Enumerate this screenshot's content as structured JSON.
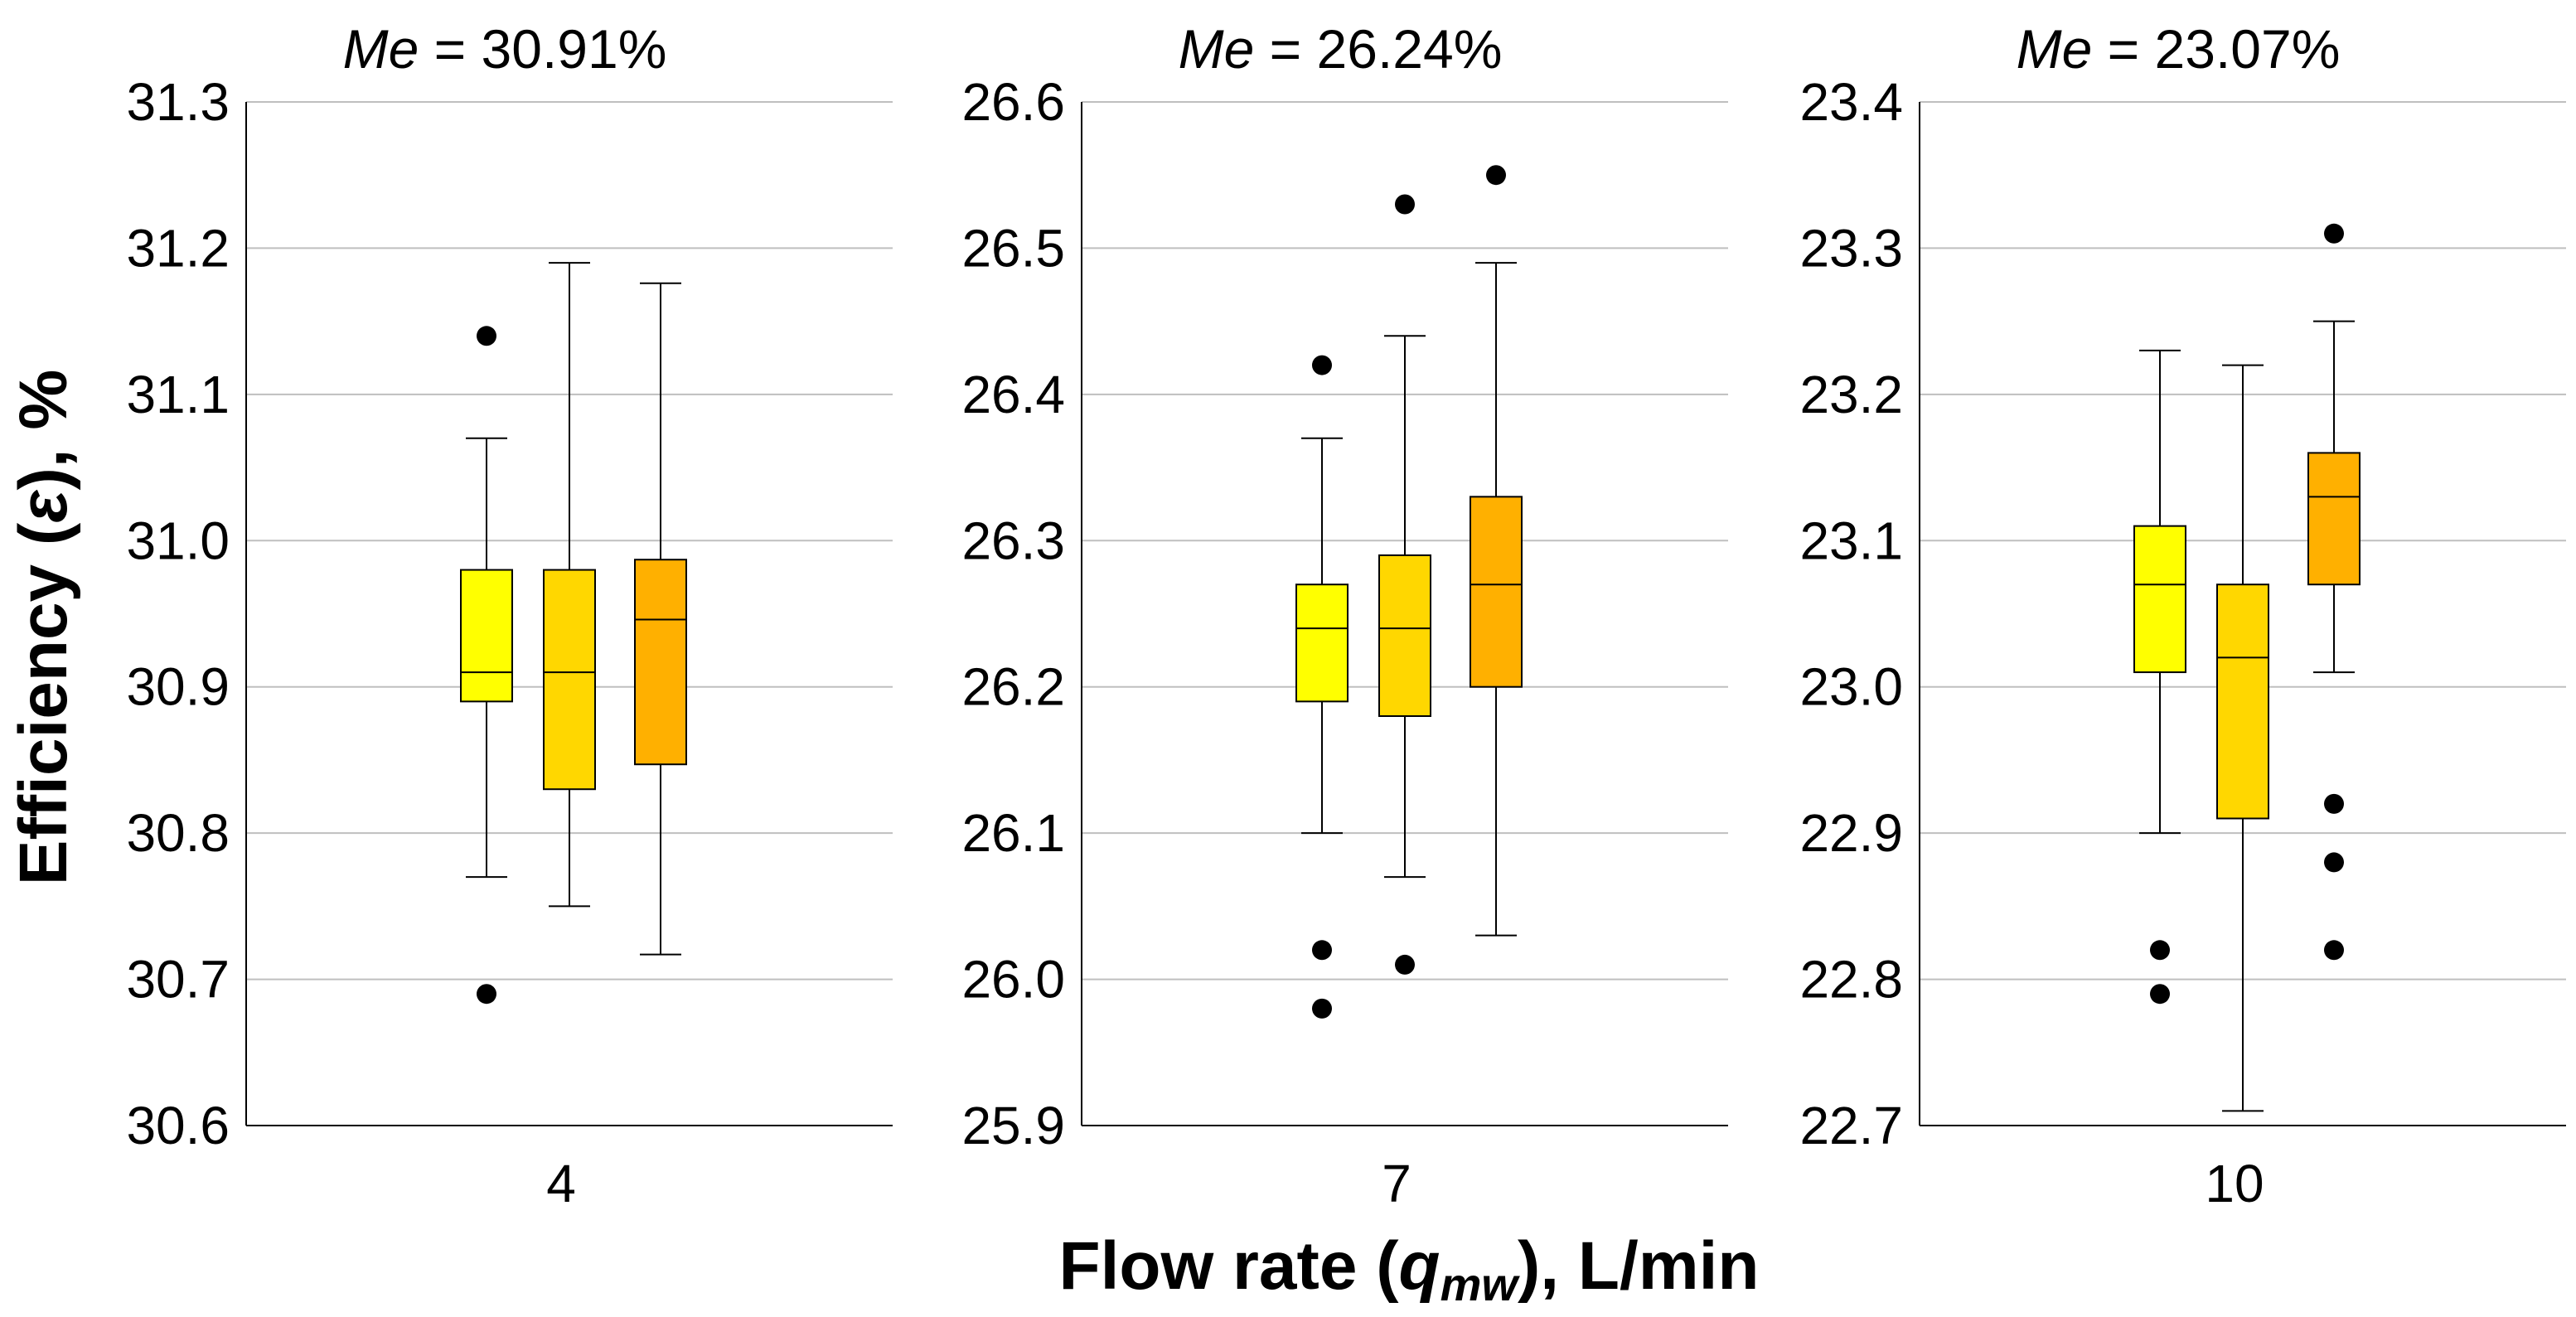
{
  "chart_data": {
    "type": "boxplot",
    "ylabel_main": "Efficiency (",
    "ylabel_symbol": "ε",
    "ylabel_tail": "), %",
    "xlabel_main": "Flow rate (",
    "xlabel_symbol": "q",
    "xlabel_sub": "mw",
    "xlabel_tail": "), L/min",
    "series_colors": [
      "#ffff00",
      "#ffd700",
      "#ffb000"
    ],
    "panels": [
      {
        "title_prefix": "Me",
        "title_value": " = 30.91%",
        "category": "4",
        "yticks": [
          "30.6",
          "30.7",
          "30.8",
          "30.9",
          "31.0",
          "31.1",
          "31.2",
          "31.3"
        ],
        "ylim": [
          30.6,
          31.3
        ],
        "boxes": [
          {
            "whisker_low": 30.77,
            "q1": 30.89,
            "median": 30.91,
            "q3": 30.98,
            "whisker_high": 31.07,
            "outliers": [
              30.69,
              31.14
            ]
          },
          {
            "whisker_low": 30.75,
            "q1": 30.83,
            "median": 30.91,
            "q3": 30.98,
            "whisker_high": 31.19,
            "outliers": []
          },
          {
            "whisker_low": 30.717,
            "q1": 30.847,
            "median": 30.946,
            "q3": 30.987,
            "whisker_high": 31.176,
            "outliers": []
          }
        ]
      },
      {
        "title_prefix": "Me",
        "title_value": " = 26.24%",
        "category": "7",
        "yticks": [
          "25.9",
          "26.0",
          "26.1",
          "26.2",
          "26.3",
          "26.4",
          "26.5",
          "26.6"
        ],
        "ylim": [
          25.9,
          26.6
        ],
        "boxes": [
          {
            "whisker_low": 26.1,
            "q1": 26.19,
            "median": 26.24,
            "q3": 26.27,
            "whisker_high": 26.37,
            "outliers": [
              25.98,
              26.02,
              26.42
            ]
          },
          {
            "whisker_low": 26.07,
            "q1": 26.18,
            "median": 26.24,
            "q3": 26.29,
            "whisker_high": 26.44,
            "outliers": [
              26.01,
              26.53
            ]
          },
          {
            "whisker_low": 26.03,
            "q1": 26.2,
            "median": 26.27,
            "q3": 26.33,
            "whisker_high": 26.49,
            "outliers": [
              26.55
            ]
          }
        ]
      },
      {
        "title_prefix": "Me",
        "title_value": " = 23.07%",
        "category": "10",
        "yticks": [
          "22.7",
          "22.8",
          "22.9",
          "23.0",
          "23.1",
          "23.2",
          "23.3",
          "23.4"
        ],
        "ylim": [
          22.7,
          23.4
        ],
        "boxes": [
          {
            "whisker_low": 22.9,
            "q1": 23.01,
            "median": 23.07,
            "q3": 23.11,
            "whisker_high": 23.23,
            "outliers": [
              22.79,
              22.82
            ]
          },
          {
            "whisker_low": 22.71,
            "q1": 22.91,
            "median": 23.02,
            "q3": 23.07,
            "whisker_high": 23.22,
            "outliers": []
          },
          {
            "whisker_low": 23.01,
            "q1": 23.07,
            "median": 23.13,
            "q3": 23.16,
            "whisker_high": 23.25,
            "outliers": [
              22.82,
              22.88,
              22.92,
              23.31
            ]
          }
        ]
      }
    ]
  }
}
